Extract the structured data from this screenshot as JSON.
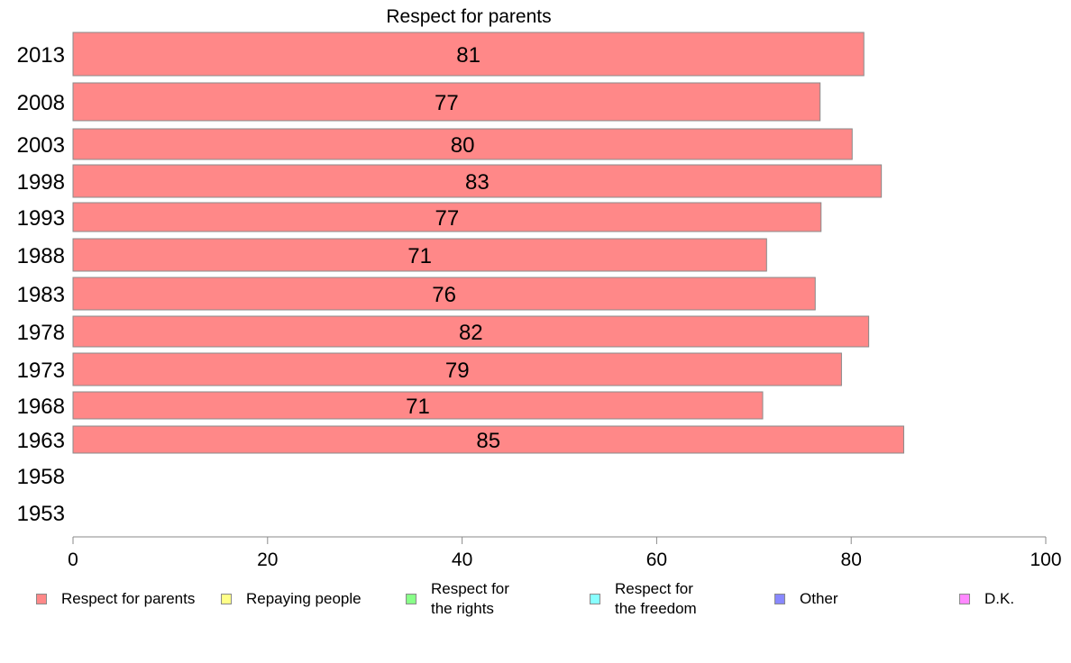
{
  "chart_data": {
    "type": "bar",
    "orientation": "horizontal",
    "title": "Respect for parents",
    "categories": [
      "2013",
      "2008",
      "2003",
      "1998",
      "1993",
      "1988",
      "1983",
      "1978",
      "1973",
      "1968",
      "1963",
      "1958",
      "1953"
    ],
    "series": [
      {
        "name": "Respect for parents",
        "color": "#ff8888",
        "values": [
          81.3,
          76.8,
          80.1,
          83.1,
          76.9,
          71.3,
          76.3,
          81.8,
          79.0,
          70.9,
          85.4,
          null,
          null
        ],
        "labels": [
          "81",
          "77",
          "80",
          "83",
          "77",
          "71",
          "76",
          "82",
          "79",
          "71",
          "85",
          "",
          ""
        ]
      }
    ],
    "xlim": [
      0,
      100
    ],
    "xticks": [
      "0",
      "20",
      "40",
      "60",
      "80",
      "100"
    ],
    "grid": false,
    "legend_position": "bottom",
    "legend": [
      {
        "label": "Respect for parents",
        "color": "#ff8888"
      },
      {
        "label": "Repaying people",
        "color": "#ffff88"
      },
      {
        "label": "Respect for\nthe rights",
        "color": "#88ff88"
      },
      {
        "label": "Respect for\nthe freedom",
        "color": "#88ffff"
      },
      {
        "label": "Other",
        "color": "#8888ff"
      },
      {
        "label": "D.K.",
        "color": "#ff88ff"
      }
    ]
  }
}
